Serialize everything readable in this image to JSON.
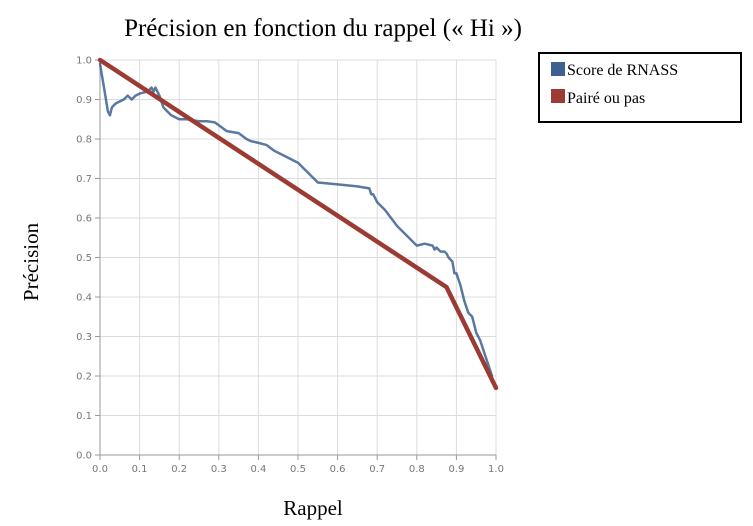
{
  "chart_data": {
    "type": "line",
    "title": "Précision en fonction du rappel (« Hi »)",
    "xlabel": "Rappel",
    "ylabel": "Précision",
    "xlim": [
      0.0,
      1.0
    ],
    "ylim": [
      0.0,
      1.0
    ],
    "x_ticks": [
      "0.0",
      "0.1",
      "0.2",
      "0.3",
      "0.4",
      "0.5",
      "0.6",
      "0.7",
      "0.8",
      "0.9",
      "1.0"
    ],
    "y_ticks": [
      "0.0",
      "0.1",
      "0.2",
      "0.3",
      "0.4",
      "0.5",
      "0.6",
      "0.7",
      "0.8",
      "0.9",
      "1.0"
    ],
    "grid": true,
    "legend": "top-right",
    "series": [
      {
        "name": "Score de RNASS",
        "color": "#3c6190",
        "x": [
          0.0,
          0.01,
          0.02,
          0.025,
          0.03,
          0.04,
          0.06,
          0.07,
          0.08,
          0.09,
          0.1,
          0.12,
          0.13,
          0.135,
          0.14,
          0.15,
          0.16,
          0.17,
          0.18,
          0.2,
          0.22,
          0.25,
          0.27,
          0.29,
          0.3,
          0.32,
          0.35,
          0.37,
          0.38,
          0.4,
          0.42,
          0.44,
          0.46,
          0.48,
          0.5,
          0.51,
          0.53,
          0.54,
          0.55,
          0.6,
          0.65,
          0.68,
          0.685,
          0.69,
          0.7,
          0.72,
          0.75,
          0.8,
          0.82,
          0.84,
          0.845,
          0.85,
          0.86,
          0.87,
          0.875,
          0.88,
          0.89,
          0.895,
          0.9,
          0.91,
          0.92,
          0.93,
          0.94,
          0.945,
          0.95,
          0.96,
          0.97,
          0.98,
          0.99
        ],
        "y": [
          0.99,
          0.93,
          0.87,
          0.86,
          0.88,
          0.89,
          0.9,
          0.91,
          0.9,
          0.91,
          0.915,
          0.92,
          0.93,
          0.92,
          0.93,
          0.91,
          0.88,
          0.87,
          0.86,
          0.85,
          0.85,
          0.845,
          0.845,
          0.842,
          0.835,
          0.82,
          0.815,
          0.8,
          0.795,
          0.79,
          0.785,
          0.77,
          0.76,
          0.75,
          0.74,
          0.73,
          0.71,
          0.7,
          0.69,
          0.685,
          0.68,
          0.675,
          0.66,
          0.66,
          0.64,
          0.62,
          0.58,
          0.53,
          0.535,
          0.53,
          0.52,
          0.525,
          0.515,
          0.515,
          0.51,
          0.5,
          0.49,
          0.46,
          0.46,
          0.43,
          0.39,
          0.36,
          0.35,
          0.33,
          0.31,
          0.29,
          0.26,
          0.23,
          0.2
        ]
      },
      {
        "name": "Pairé ou pas",
        "color": "#9c3b34",
        "x": [
          0.0,
          0.875,
          1.0
        ],
        "y": [
          1.0,
          0.425,
          0.17
        ]
      }
    ]
  }
}
